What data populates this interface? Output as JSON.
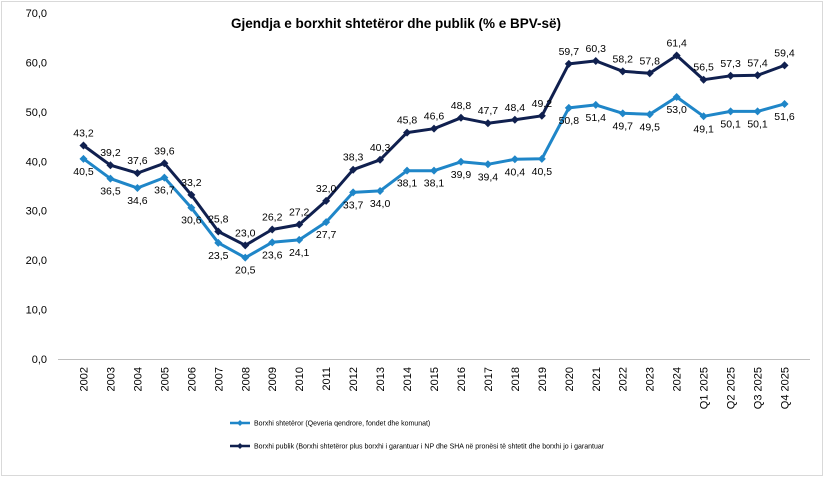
{
  "chart_data": {
    "type": "line",
    "title": "Gjendja e borxhit shtetëror dhe publik (% e BPV-së)",
    "xlabel": "",
    "ylabel": "",
    "ylim": [
      0,
      70
    ],
    "yticks": [
      "0,0",
      "10,0",
      "20,0",
      "30,0",
      "40,0",
      "50,0",
      "60,0",
      "70,0"
    ],
    "grid": false,
    "legend_position": "bottom-left",
    "categories": [
      "2002",
      "2003",
      "2004",
      "2005",
      "2006",
      "2007",
      "2008",
      "2009",
      "2010",
      "2011",
      "2012",
      "2013",
      "2014",
      "2015",
      "2016",
      "2017",
      "2018",
      "2019",
      "2020",
      "2021",
      "2022",
      "2023",
      "2024",
      "Q1 2025",
      "Q2 2025",
      "Q3 2025",
      "Q4 2025"
    ],
    "series": [
      {
        "name": "Borxhi shtetëror (Qeveria qendrore, fondet dhe komunat)",
        "color": "#1f86c8",
        "values": [
          40.5,
          36.5,
          34.6,
          36.7,
          30.6,
          23.5,
          20.5,
          23.6,
          24.1,
          27.7,
          33.7,
          34.0,
          38.1,
          38.1,
          39.9,
          39.4,
          40.4,
          40.5,
          50.8,
          51.4,
          49.7,
          49.5,
          53.0,
          49.1,
          50.1,
          50.1,
          51.6
        ],
        "labels": [
          "40,5",
          "36,5",
          "34,6",
          "36,7",
          "30,6",
          "23,5",
          "20,5",
          "23,6",
          "24,1",
          "27,7",
          "33,7",
          "34,0",
          "38,1",
          "38,1",
          "39,9",
          "39,4",
          "40,4",
          "40,5",
          "50,8",
          "51,4",
          "49,7",
          "49,5",
          "53,0",
          "49,1",
          "50,1",
          "50,1",
          "51,6"
        ]
      },
      {
        "name": "Borxhi publik (Borxhi shtetëror plus borxhi i garantuar i NP dhe SHA në pronësi të shtetit dhe borxhi jo i garantuar",
        "color": "#10204f",
        "values": [
          43.2,
          39.2,
          37.6,
          39.6,
          33.2,
          25.8,
          23.0,
          26.2,
          27.2,
          32.0,
          38.3,
          40.3,
          45.8,
          46.6,
          48.8,
          47.7,
          48.4,
          49.2,
          59.7,
          60.3,
          58.2,
          57.8,
          61.4,
          56.5,
          57.3,
          57.4,
          59.4
        ],
        "labels": [
          "43,2",
          "39,2",
          "37,6",
          "39,6",
          "33,2",
          "25,8",
          "23,0",
          "26,2",
          "27,2",
          "32,0",
          "38,3",
          "40,3",
          "45,8",
          "46,6",
          "48,8",
          "47,7",
          "48,4",
          "49,2",
          "59,7",
          "60,3",
          "58,2",
          "57,8",
          "61,4",
          "56,5",
          "57,3",
          "57,4",
          "59,4"
        ]
      }
    ]
  }
}
